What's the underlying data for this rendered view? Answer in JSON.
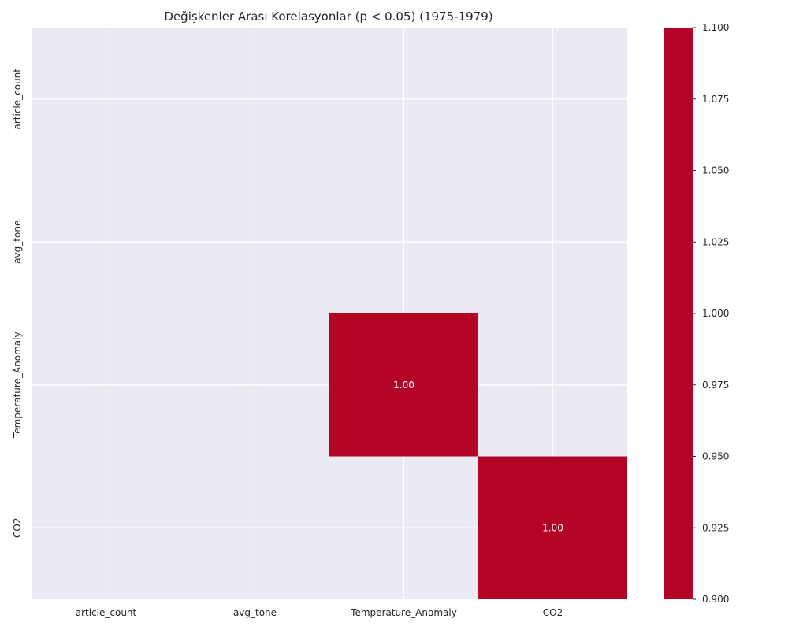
{
  "chart_data": {
    "type": "heatmap",
    "title": "Değişkenler Arası Korelasyonlar (p < 0.05) (1975-1979)",
    "x_categories": [
      "article_count",
      "avg_tone",
      "Temperature_Anomaly",
      "CO2"
    ],
    "y_categories": [
      "article_count",
      "avg_tone",
      "Temperature_Anomaly",
      "CO2"
    ],
    "cells": [
      {
        "row": 2,
        "col": 2,
        "value": 1.0,
        "label": "1.00"
      },
      {
        "row": 3,
        "col": 3,
        "value": 1.0,
        "label": "1.00"
      }
    ],
    "colorbar": {
      "range": [
        0.9,
        1.1
      ],
      "ticks": [
        "1.100",
        "1.075",
        "1.050",
        "1.025",
        "1.000",
        "0.975",
        "0.950",
        "0.925",
        "0.900"
      ],
      "color": "#b40426"
    },
    "masked_cells": "blank (p >= 0.05)",
    "grid": true
  },
  "colors": {
    "background": "#eaeaf2",
    "grid": "#ffffff",
    "cell": "#b40426",
    "text": "#262626"
  }
}
